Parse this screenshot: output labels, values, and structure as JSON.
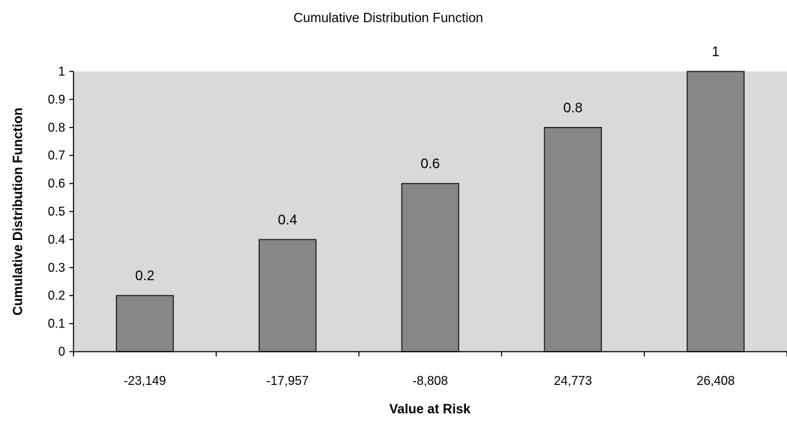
{
  "chart_data": {
    "type": "bar",
    "title": "Cumulative Distribution Function",
    "xlabel": "Value at Risk",
    "ylabel": "Cumulative Distribution Function",
    "categories": [
      "-23,149",
      "-17,957",
      "-8,808",
      "24,773",
      "26,408"
    ],
    "values": [
      0.2,
      0.4,
      0.6,
      0.8,
      1
    ],
    "data_labels": [
      "0.2",
      "0.4",
      "0.6",
      "0.8",
      "1"
    ],
    "yticks": [
      "0",
      "0.1",
      "0.2",
      "0.3",
      "0.4",
      "0.5",
      "0.6",
      "0.7",
      "0.8",
      "0.9",
      "1"
    ],
    "ylim": [
      0,
      1
    ],
    "grid": false,
    "legend": "none",
    "colors": {
      "plot_background": "#d9d9d9",
      "bar_fill": "#878787",
      "bar_stroke": "#1a1a1a",
      "axis": "#000000"
    }
  }
}
